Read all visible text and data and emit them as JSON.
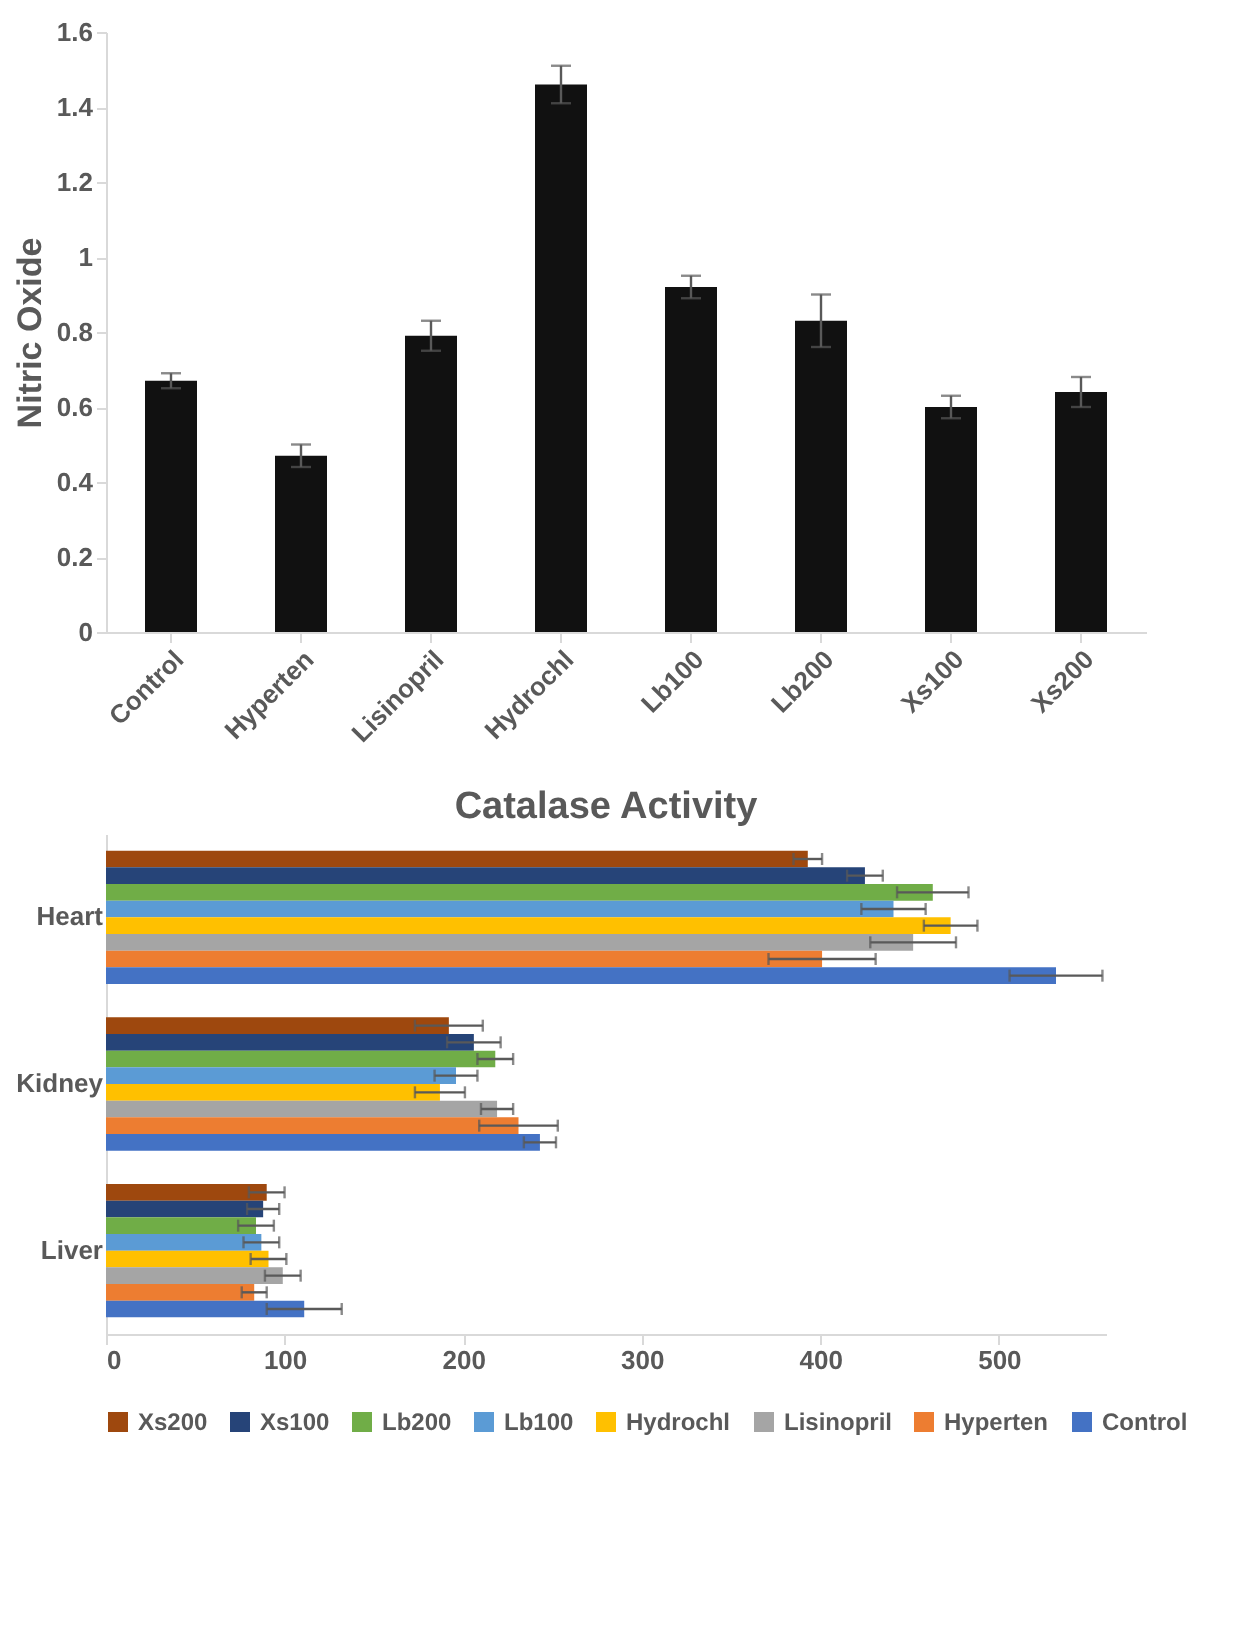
{
  "chart_data": [
    {
      "type": "bar",
      "ylabel": "Nitric Oxide",
      "categories": [
        "Control",
        "Hyperten",
        "Lisinopril",
        "Hydrochl",
        "Lb100",
        "Lb200",
        "Xs100",
        "Xs200"
      ],
      "values": [
        0.67,
        0.47,
        0.79,
        1.46,
        0.92,
        0.83,
        0.6,
        0.64
      ],
      "errors": [
        0.02,
        0.03,
        0.04,
        0.05,
        0.03,
        0.07,
        0.03,
        0.04
      ],
      "color": "#111111",
      "ylim": [
        0,
        1.6
      ],
      "yticks": [
        0,
        0.2,
        0.4,
        0.6,
        0.8,
        1,
        1.2,
        1.4,
        1.6
      ],
      "grid": false
    },
    {
      "type": "bar",
      "title": "Catalase Activity",
      "orientation": "horizontal",
      "categories": [
        "Heart",
        "Kidney",
        "Liver"
      ],
      "series": [
        {
          "name": "Xs200",
          "color": "#9e480e",
          "values": [
            393,
            192,
            90
          ],
          "errors": [
            8,
            19,
            10
          ]
        },
        {
          "name": "Xs100",
          "color": "#264478",
          "values": [
            425,
            206,
            88
          ],
          "errors": [
            10,
            15,
            9
          ]
        },
        {
          "name": "Lb200",
          "color": "#70ad47",
          "values": [
            463,
            218,
            84
          ],
          "errors": [
            20,
            10,
            10
          ]
        },
        {
          "name": "Lb100",
          "color": "#5b9bd5",
          "values": [
            441,
            196,
            87
          ],
          "errors": [
            18,
            12,
            10
          ]
        },
        {
          "name": "Hydrochl",
          "color": "#ffc000",
          "values": [
            473,
            187,
            91
          ],
          "errors": [
            15,
            14,
            10
          ]
        },
        {
          "name": "Lisinopril",
          "color": "#a5a5a5",
          "values": [
            452,
            219,
            99
          ],
          "errors": [
            24,
            9,
            10
          ]
        },
        {
          "name": "Hyperten",
          "color": "#ed7d31",
          "values": [
            401,
            231,
            83
          ],
          "errors": [
            30,
            22,
            7
          ]
        },
        {
          "name": "Control",
          "color": "#4472c4",
          "values": [
            532,
            243,
            111
          ],
          "errors": [
            26,
            9,
            21
          ]
        }
      ],
      "xlim": [
        0,
        560
      ],
      "xticks": [
        0,
        100,
        200,
        300,
        400,
        500
      ],
      "grid": false,
      "legend": "bottom"
    }
  ]
}
